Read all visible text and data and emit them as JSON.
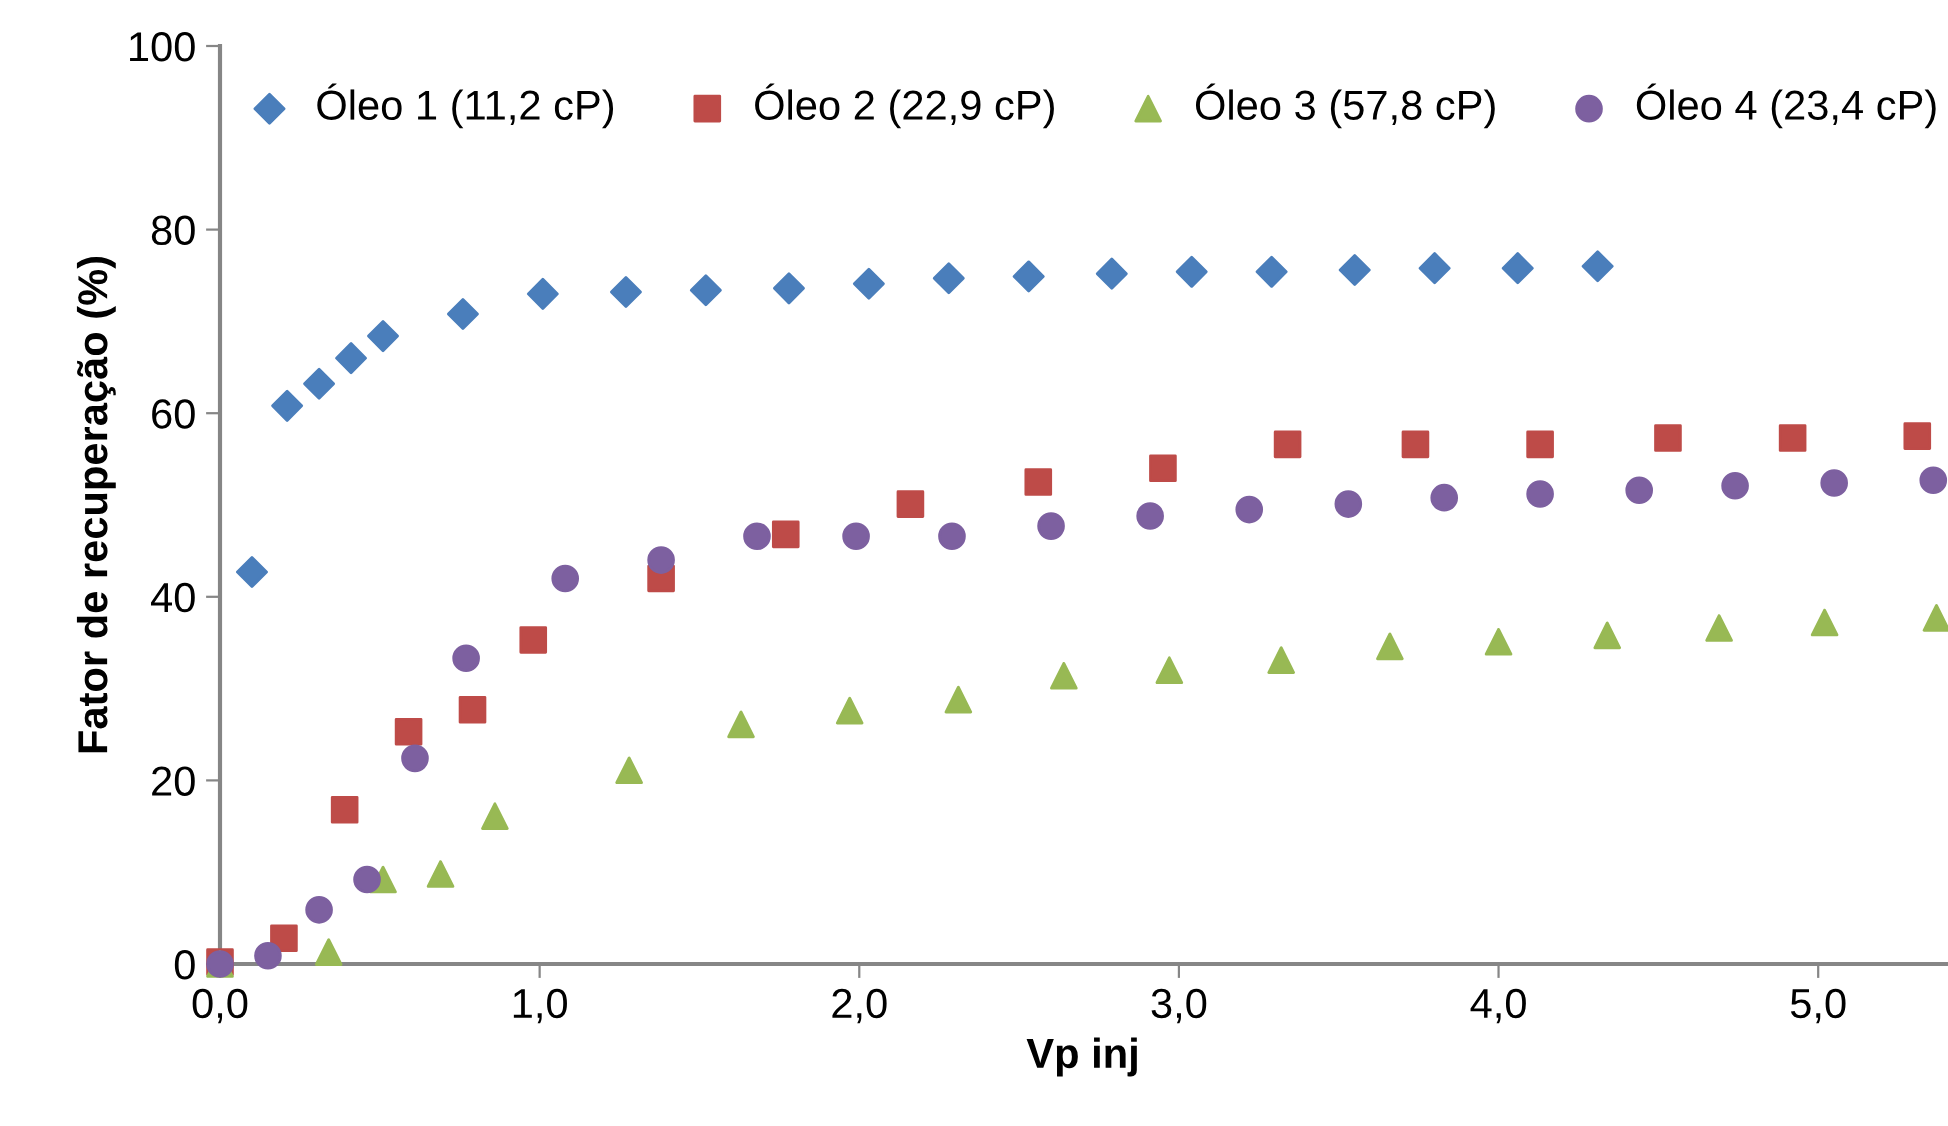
{
  "chart_data": {
    "type": "scatter",
    "xlabel": "Vp inj",
    "ylabel": "Fator de recuperação (%)",
    "xlim": [
      0,
      5.4
    ],
    "ylim": [
      0,
      100
    ],
    "xticks": [
      {
        "value": 0,
        "label": "0,0"
      },
      {
        "value": 1,
        "label": "1,0"
      },
      {
        "value": 2,
        "label": "2,0"
      },
      {
        "value": 3,
        "label": "3,0"
      },
      {
        "value": 4,
        "label": "4,0"
      },
      {
        "value": 5,
        "label": "5,0"
      }
    ],
    "yticks": [
      0,
      20,
      40,
      60,
      80,
      100
    ],
    "grid": false,
    "legend": "top",
    "series": [
      {
        "name": "Óleo 1 (11,2 cP)",
        "color": "#4a7ebb",
        "marker": "diamond",
        "x": [
          0.1,
          0.21,
          0.31,
          0.41,
          0.51,
          0.76,
          1.01,
          1.27,
          1.52,
          1.78,
          2.03,
          2.28,
          2.53,
          2.79,
          3.04,
          3.29,
          3.55,
          3.8,
          4.06,
          4.31
        ],
        "values": [
          42.7,
          60.8,
          63.2,
          66.0,
          68.4,
          70.8,
          73.0,
          73.2,
          73.4,
          73.6,
          74.1,
          74.7,
          74.9,
          75.2,
          75.4,
          75.4,
          75.6,
          75.8,
          75.8,
          76.0
        ]
      },
      {
        "name": "Óleo 2 (22,9 cP)",
        "color": "#be4b48",
        "marker": "square",
        "x": [
          0,
          0.2,
          0.39,
          0.59,
          0.79,
          0.98,
          1.38,
          1.77,
          2.16,
          2.56,
          2.95,
          3.34,
          3.74,
          4.13,
          4.53,
          4.92,
          5.31
        ],
        "values": [
          0.2,
          2.8,
          16.8,
          25.3,
          27.7,
          35.3,
          42.0,
          46.8,
          50.1,
          52.5,
          54.0,
          56.6,
          56.6,
          56.6,
          57.3,
          57.3,
          57.5
        ]
      },
      {
        "name": "Óleo 3 (57,8 cP)",
        "color": "#98b954",
        "marker": "triangle",
        "x": [
          0,
          0.34,
          0.51,
          0.69,
          0.86,
          1.28,
          1.63,
          1.97,
          2.31,
          2.64,
          2.97,
          3.32,
          3.66,
          4.0,
          4.34,
          4.69,
          5.02,
          5.37
        ],
        "values": [
          0,
          1.3,
          9.2,
          9.8,
          16.1,
          21.1,
          26.1,
          27.6,
          28.8,
          31.4,
          32.0,
          33.1,
          34.6,
          35.1,
          35.8,
          36.6,
          37.2,
          37.7
        ]
      },
      {
        "name": "Óleo 4 (23,4 cP)",
        "color": "#7d60a0",
        "marker": "circle",
        "x": [
          0,
          0.15,
          0.31,
          0.46,
          0.61,
          0.77,
          1.08,
          1.38,
          1.68,
          1.99,
          2.29,
          2.6,
          2.91,
          3.22,
          3.53,
          3.83,
          4.13,
          4.44,
          4.74,
          5.05,
          5.36
        ],
        "values": [
          0,
          0.9,
          5.9,
          9.2,
          22.4,
          33.3,
          42.0,
          44.0,
          46.6,
          46.6,
          46.6,
          47.7,
          48.8,
          49.5,
          50.1,
          50.8,
          51.2,
          51.6,
          52.1,
          52.4,
          52.7
        ]
      }
    ]
  }
}
